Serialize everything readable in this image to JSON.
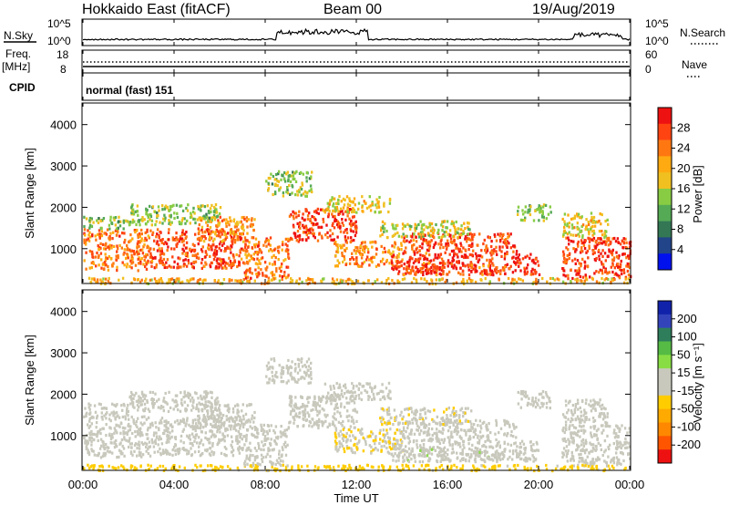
{
  "header": {
    "radar": "Hokkaido East (fitACF)",
    "beam": "Beam 00",
    "date": "19/Aug/2019"
  },
  "panels": {
    "nsky_label": "N.Sky",
    "nsearch_label": "N.Search",
    "freq_label": "Freq.",
    "freq_unit": "[MHz]",
    "nave_label": "Nave",
    "cpid_label": "CPID",
    "cpid_value": "normal (fast) 151",
    "noise_left_ticks": [
      "10^5",
      "10^0"
    ],
    "noise_right_ticks": [
      "10^5",
      "10^0"
    ],
    "freq_ticks": [
      "18",
      "8"
    ],
    "nave_ticks": [
      "60",
      "0"
    ]
  },
  "axes": {
    "time_label": "Time UT",
    "time_ticks": [
      "00:00",
      "04:00",
      "08:00",
      "12:00",
      "16:00",
      "20:00",
      "00:00"
    ],
    "range_label": "Slant Range [km]",
    "range_ticks": [
      "4000",
      "3000",
      "2000",
      "1000"
    ]
  },
  "colorbars": {
    "power": {
      "label": "Power [dB]",
      "ticks": [
        "28",
        "24",
        "20",
        "16",
        "12",
        "8",
        "4"
      ],
      "colors": [
        "#ee1111",
        "#ff4411",
        "#ff7711",
        "#ffaa11",
        "#f0c020",
        "#88cc44",
        "#55aa55",
        "#337755",
        "#224488",
        "#0011ee"
      ]
    },
    "velocity": {
      "label": "Velocity [m s⁻¹]",
      "ticks": [
        "200",
        "100",
        "50",
        "15",
        "-15",
        "-50",
        "-100",
        "-200"
      ],
      "colors": [
        "#1122aa",
        "#3344bb",
        "#2e7d5b",
        "#55bb44",
        "#88dd44",
        "#c8c8bc",
        "#c8c8bc",
        "#ffcc00",
        "#ffaa00",
        "#ff8800",
        "#ff5500",
        "#ee1111"
      ]
    }
  },
  "chart_data": {
    "type": "heatmap",
    "x_range_hours": [
      0,
      24
    ],
    "y_range_km": [
      180,
      4500
    ],
    "power_scale_db": [
      0,
      32
    ],
    "velocity_scale_ms": [
      -250,
      250
    ],
    "scatter_patches": [
      {
        "t0": 0.0,
        "t1": 3.0,
        "r0": 500,
        "r1": 1500,
        "power": 24,
        "velocity": 0
      },
      {
        "t0": 0.0,
        "t1": 2.0,
        "r0": 1500,
        "r1": 1800,
        "power": 14,
        "velocity": 0
      },
      {
        "t0": 3.0,
        "t1": 7.0,
        "r0": 550,
        "r1": 1500,
        "power": 27,
        "velocity": 0
      },
      {
        "t0": 5.0,
        "t1": 7.5,
        "r0": 1200,
        "r1": 1800,
        "power": 22,
        "velocity": 0
      },
      {
        "t0": 2.0,
        "t1": 6.0,
        "r0": 1600,
        "r1": 2100,
        "power": 14,
        "velocity": 0
      },
      {
        "t0": 7.0,
        "t1": 9.0,
        "r0": 650,
        "r1": 1300,
        "power": 24,
        "velocity": 0
      },
      {
        "t0": 9.0,
        "t1": 12.0,
        "r0": 1200,
        "r1": 2000,
        "power": 28,
        "velocity": 0
      },
      {
        "t0": 10.5,
        "t1": 13.5,
        "r0": 1900,
        "r1": 2300,
        "power": 18,
        "velocity": 0
      },
      {
        "t0": 8.0,
        "t1": 10.0,
        "r0": 2300,
        "r1": 2900,
        "power": 14,
        "velocity": 0
      },
      {
        "t0": 11.0,
        "t1": 14.0,
        "r0": 600,
        "r1": 1200,
        "power": 23,
        "velocity": -40
      },
      {
        "t0": 14.0,
        "t1": 19.0,
        "r0": 900,
        "r1": 1400,
        "power": 27,
        "velocity": 0
      },
      {
        "t0": 13.5,
        "t1": 20.0,
        "r0": 400,
        "r1": 900,
        "power": 29,
        "velocity": 0
      },
      {
        "t0": 14.0,
        "t1": 16.0,
        "r0": 400,
        "r1": 700,
        "power": 26,
        "velocity": 25
      },
      {
        "t0": 17.0,
        "t1": 18.5,
        "r0": 400,
        "r1": 650,
        "power": 26,
        "velocity": 25
      },
      {
        "t0": 13.0,
        "t1": 17.0,
        "r0": 1300,
        "r1": 1700,
        "power": 16,
        "velocity": -30
      },
      {
        "t0": 21.0,
        "t1": 24.0,
        "r0": 300,
        "r1": 1300,
        "power": 28,
        "velocity": 0
      },
      {
        "t0": 21.0,
        "t1": 23.0,
        "r0": 1300,
        "r1": 1900,
        "power": 18,
        "velocity": 0
      },
      {
        "t0": 19.0,
        "t1": 20.5,
        "r0": 1700,
        "r1": 2100,
        "power": 14,
        "velocity": 0
      },
      {
        "t0": 0.0,
        "t1": 24.0,
        "r0": 180,
        "r1": 320,
        "power": 20,
        "velocity": -60
      },
      {
        "t0": 7.0,
        "t1": 9.0,
        "r0": 300,
        "r1": 600,
        "power": 26,
        "velocity": 0
      }
    ]
  }
}
